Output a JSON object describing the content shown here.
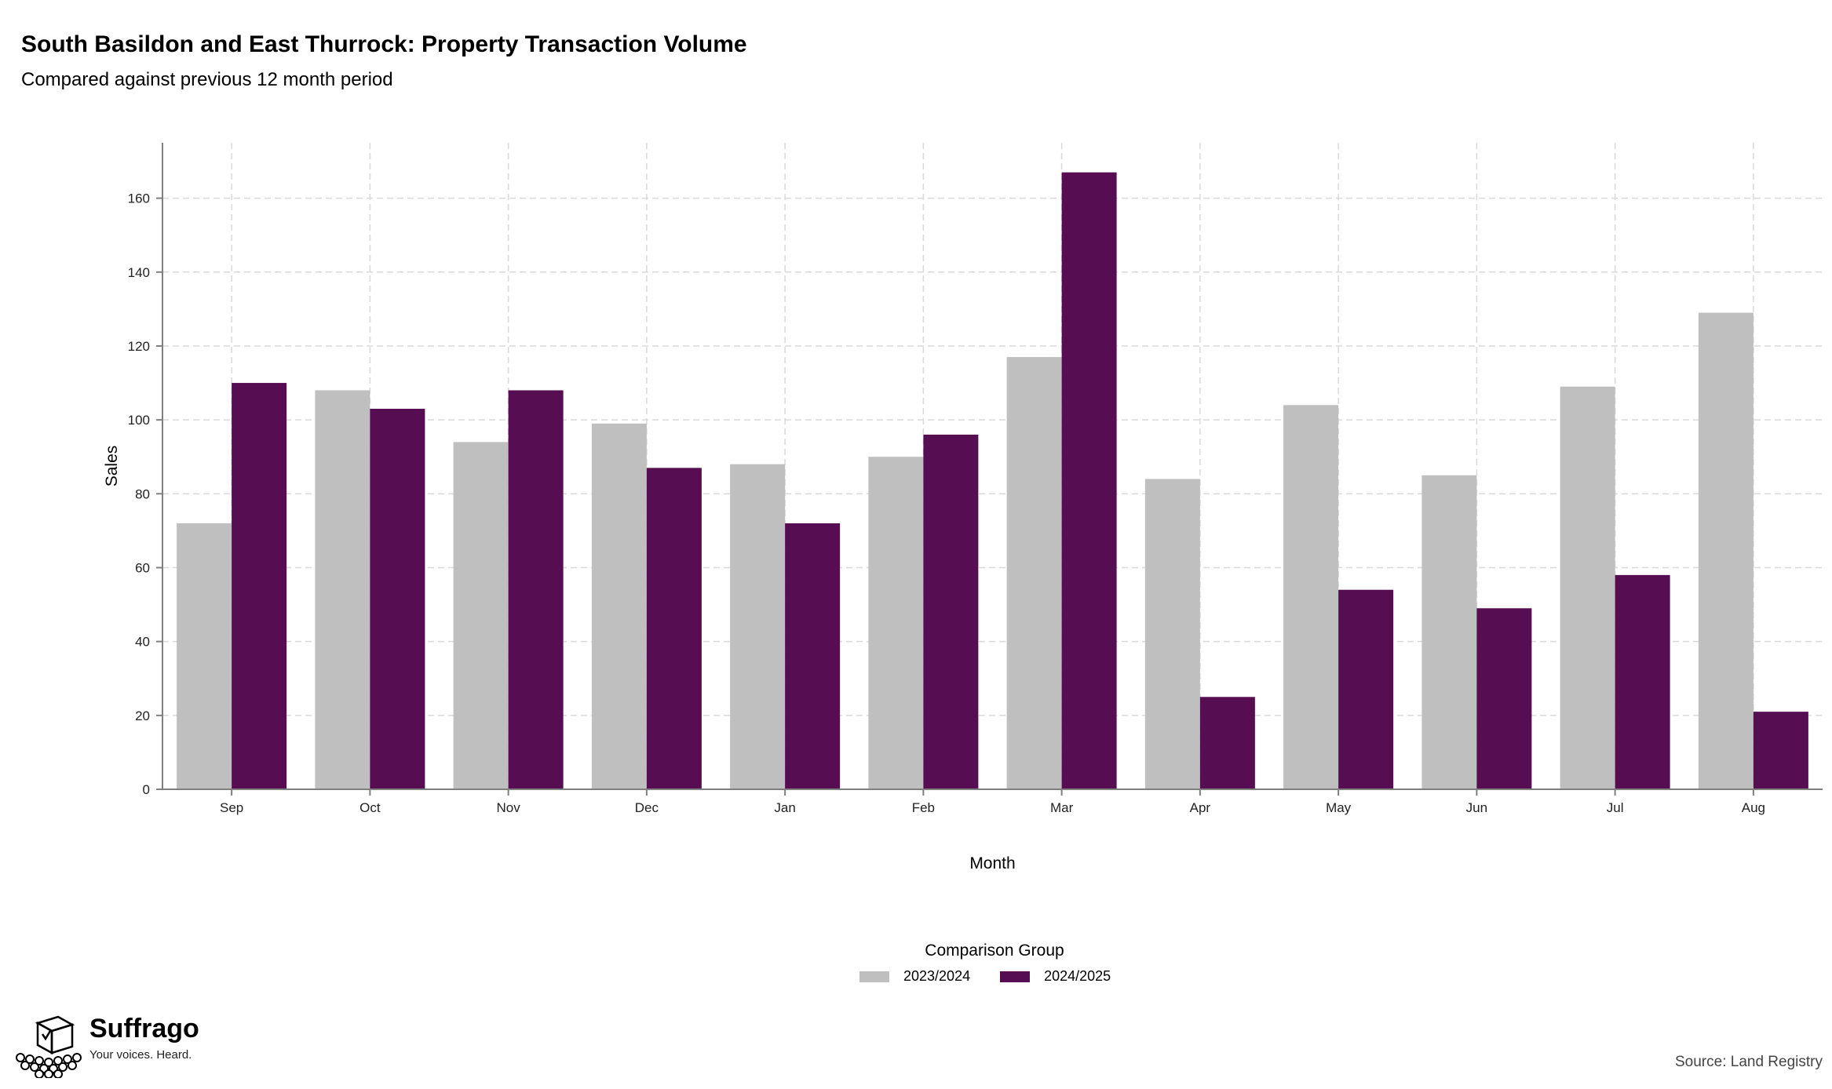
{
  "header": {
    "title": "South Basildon and East Thurrock: Property Transaction Volume",
    "subtitle": "Compared against previous 12 month period"
  },
  "legend": {
    "title": "Comparison Group",
    "items": [
      {
        "label": "2023/2024",
        "color": "#bfbfbf"
      },
      {
        "label": "2024/2025",
        "color": "#560d52"
      }
    ]
  },
  "footer": {
    "brand": "Suffrago",
    "tagline": "Your voices. Heard.",
    "source": "Source: Land Registry"
  },
  "chart_data": {
    "type": "bar",
    "title": "South Basildon and East Thurrock: Property Transaction Volume",
    "subtitle": "Compared against previous 12 month period",
    "xlabel": "Month",
    "ylabel": "Sales",
    "categories": [
      "Sep",
      "Oct",
      "Nov",
      "Dec",
      "Jan",
      "Feb",
      "Mar",
      "Apr",
      "May",
      "Jun",
      "Jul",
      "Aug"
    ],
    "series": [
      {
        "name": "2023/2024",
        "color": "#bfbfbf",
        "values": [
          72,
          108,
          94,
          99,
          88,
          90,
          117,
          84,
          104,
          85,
          109,
          129
        ]
      },
      {
        "name": "2024/2025",
        "color": "#560d52",
        "values": [
          110,
          103,
          108,
          87,
          72,
          96,
          167,
          25,
          54,
          49,
          58,
          21
        ]
      }
    ],
    "ylim": [
      0,
      175
    ],
    "yticks": [
      0,
      20,
      40,
      60,
      80,
      100,
      120,
      140,
      160
    ],
    "grid": true,
    "legend_position": "bottom"
  }
}
